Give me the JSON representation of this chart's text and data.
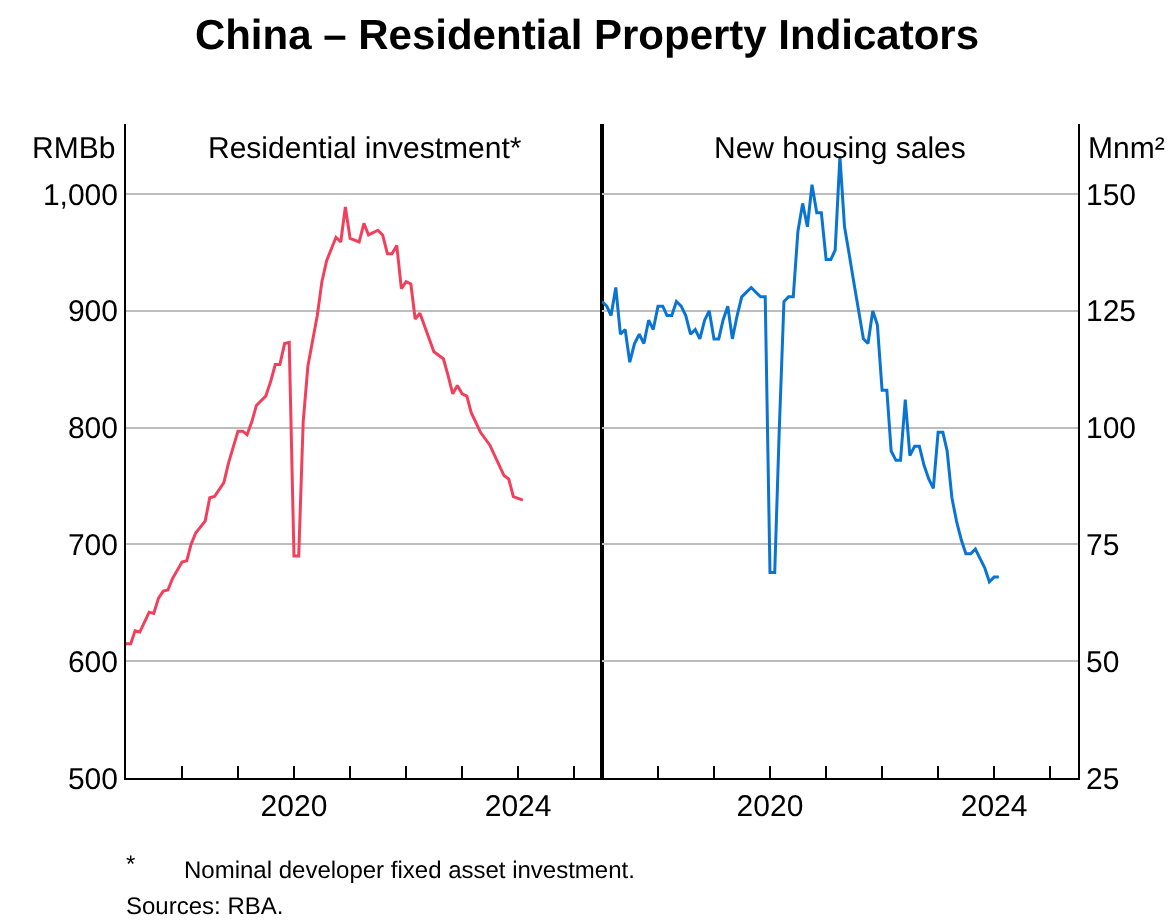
{
  "chart_data": [
    {
      "type": "line",
      "title": "China – Residential Property Indicators",
      "subtitle": "Residential investment*",
      "ylabel": "RMBb",
      "color": "#f2405c",
      "x": [
        "2017-01",
        "2017-02",
        "2017-03",
        "2017-04",
        "2017-06",
        "2017-07",
        "2017-08",
        "2017-09",
        "2017-10",
        "2017-11",
        "2018-01",
        "2018-02",
        "2018-03",
        "2018-04",
        "2018-06",
        "2018-07",
        "2018-08",
        "2018-10",
        "2018-11",
        "2019-01",
        "2019-02",
        "2019-03",
        "2019-04",
        "2019-05",
        "2019-07",
        "2019-08",
        "2019-09",
        "2019-10",
        "2019-11",
        "2019-12",
        "2020-01",
        "2020-02",
        "2020-03",
        "2020-04",
        "2020-06",
        "2020-07",
        "2020-08",
        "2020-10",
        "2020-11",
        "2020-12",
        "2021-01",
        "2021-03",
        "2021-04",
        "2021-05",
        "2021-07",
        "2021-08",
        "2021-09",
        "2021-10",
        "2021-11",
        "2021-12",
        "2022-01",
        "2022-02",
        "2022-03",
        "2022-04",
        "2022-07",
        "2022-09",
        "2022-10",
        "2022-11",
        "2022-12",
        "2023-01",
        "2023-02",
        "2023-03",
        "2023-05",
        "2023-07",
        "2023-10",
        "2023-11",
        "2023-12",
        "2024-02"
      ],
      "values": [
        615,
        615,
        626,
        625,
        642,
        641,
        654,
        660,
        661,
        671,
        685,
        686,
        700,
        710,
        720,
        740,
        741,
        753,
        770,
        797,
        797,
        794,
        805,
        819,
        827,
        839,
        854,
        854,
        872,
        873,
        690,
        690,
        805,
        853,
        896,
        925,
        943,
        963,
        959,
        989,
        962,
        959,
        975,
        965,
        969,
        965,
        949,
        949,
        956,
        919,
        925,
        923,
        893,
        898,
        865,
        859,
        845,
        829,
        836,
        829,
        827,
        813,
        796,
        785,
        759,
        756,
        741,
        738
      ],
      "xlim": [
        "2017-01",
        "2025-07"
      ],
      "xticks": [
        {
          "value": "2018",
          "label": null
        },
        {
          "value": "2019",
          "label": null
        },
        {
          "value": "2020",
          "label": "2020"
        },
        {
          "value": "2021",
          "label": null
        },
        {
          "value": "2022",
          "label": null
        },
        {
          "value": "2023",
          "label": null
        },
        {
          "value": "2024",
          "label": "2024"
        },
        {
          "value": "2025",
          "label": null
        }
      ],
      "ylim": [
        500,
        1060
      ],
      "yticks": [
        500,
        600,
        700,
        800,
        900,
        {
          "value": 1000,
          "label": "1,000"
        }
      ],
      "grid": "y",
      "annotations": [
        "*",
        "Nominal developer fixed asset investment.",
        "Sources: RBA."
      ]
    },
    {
      "type": "line",
      "subtitle": "New housing sales",
      "ylabel": "Mnm²",
      "color": "#0a74d2",
      "x": [
        "2017-01",
        "2017-02",
        "2017-03",
        "2017-04",
        "2017-05",
        "2017-06",
        "2017-07",
        "2017-08",
        "2017-09",
        "2017-10",
        "2017-11",
        "2017-12",
        "2018-01",
        "2018-02",
        "2018-03",
        "2018-04",
        "2018-05",
        "2018-06",
        "2018-07",
        "2018-08",
        "2018-09",
        "2018-10",
        "2018-11",
        "2018-12",
        "2019-01",
        "2019-02",
        "2019-03",
        "2019-04",
        "2019-05",
        "2019-06",
        "2019-07",
        "2019-08",
        "2019-09",
        "2019-10",
        "2019-11",
        "2019-12",
        "2020-01",
        "2020-02",
        "2020-03",
        "2020-04",
        "2020-05",
        "2020-06",
        "2020-07",
        "2020-08",
        "2020-09",
        "2020-10",
        "2020-11",
        "2020-12",
        "2021-01",
        "2021-02",
        "2021-03",
        "2021-04",
        "2021-05",
        "2021-06",
        "2021-07",
        "2021-08",
        "2021-09",
        "2021-10",
        "2021-11",
        "2021-12",
        "2022-01",
        "2022-02",
        "2022-03",
        "2022-04",
        "2022-05",
        "2022-06",
        "2022-07",
        "2022-08",
        "2022-09",
        "2022-10",
        "2022-11",
        "2022-12",
        "2023-01",
        "2023-02",
        "2023-03",
        "2023-04",
        "2023-05",
        "2023-06",
        "2023-07",
        "2023-08",
        "2023-09",
        "2023-10",
        "2023-11",
        "2023-12",
        "2024-01",
        "2024-02"
      ],
      "values": [
        127,
        126,
        124,
        130,
        120,
        121,
        114,
        118,
        120,
        118,
        123,
        121,
        126,
        126,
        124,
        124,
        127,
        126,
        124,
        120,
        121,
        119,
        123,
        125,
        119,
        119,
        123,
        126,
        119,
        124,
        128,
        129,
        130,
        129,
        128,
        128,
        69,
        69,
        99,
        127,
        128,
        128,
        142,
        148,
        143,
        152,
        146,
        146,
        136,
        136,
        138,
        158,
        143,
        137,
        131,
        125,
        119,
        118,
        125,
        122,
        108,
        108,
        95,
        93,
        93,
        106,
        94,
        96,
        96,
        92,
        89,
        87,
        99,
        99,
        95,
        85,
        80,
        76,
        73,
        73,
        74,
        72,
        70,
        67,
        68,
        68
      ],
      "xlim": [
        "2017-01",
        "2025-07"
      ],
      "xticks": [
        {
          "value": "2018",
          "label": null
        },
        {
          "value": "2019",
          "label": null
        },
        {
          "value": "2020",
          "label": "2020"
        },
        {
          "value": "2021",
          "label": null
        },
        {
          "value": "2022",
          "label": null
        },
        {
          "value": "2023",
          "label": null
        },
        {
          "value": "2024",
          "label": "2024"
        },
        {
          "value": "2025",
          "label": null
        }
      ],
      "ylim": [
        25,
        165
      ],
      "yticks": [
        25,
        50,
        75,
        100,
        125,
        150
      ],
      "grid": "y"
    }
  ]
}
